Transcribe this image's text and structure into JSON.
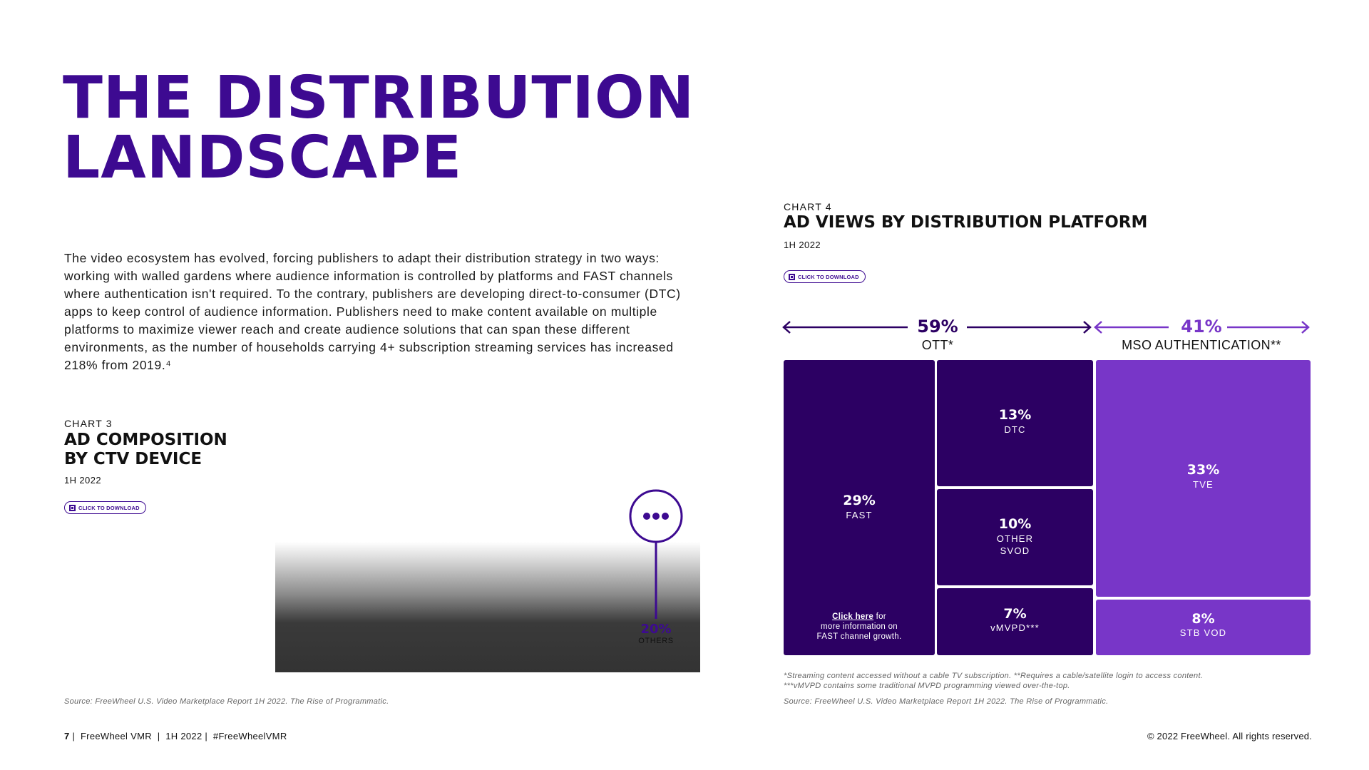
{
  "title_line1": "THE DISTRIBUTION",
  "title_line2": "LANDSCAPE",
  "intro": "The video ecosystem has evolved, forcing publishers to adapt their distribution strategy in two ways: working with walled gardens where audience information is controlled by platforms and FAST channels where authentication isn't required. To the contrary, publishers are developing direct-to-consumer (DTC) apps to keep control of audience information. Publishers need to make content available on multiple platforms to maximize viewer reach and create audience solutions that can span these different environments, as the number of households carrying 4+ subscription streaming services has increased 218% from 2019.⁴",
  "download_label": "CLICK TO DOWNLOAD",
  "chart3": {
    "label": "CHART 3",
    "title_line1": "AD COMPOSITION",
    "title_line2": "BY CTV DEVICE",
    "period": "1H 2022",
    "others_pct": "20%",
    "others_label": "OTHERS",
    "source": "Source: FreeWheel U.S. Video Marketplace Report 1H 2022. The Rise of Programmatic."
  },
  "chart4": {
    "label": "CHART 4",
    "title": "AD VIEWS BY DISTRIBUTION PLATFORM",
    "period": "1H 2022",
    "ott": {
      "pct": "59%",
      "label": "OTT*"
    },
    "mso": {
      "pct": "41%",
      "label": "MSO AUTHENTICATION**"
    },
    "tiles": {
      "fast": {
        "pct": "29%",
        "name": "FAST"
      },
      "dtc": {
        "pct": "13%",
        "name": "DTC"
      },
      "other_svod": {
        "pct": "10%",
        "name_line1": "OTHER",
        "name_line2": "SVOD"
      },
      "vmvpd": {
        "pct": "7%",
        "name": "vMVPD***"
      },
      "tve": {
        "pct": "33%",
        "name": "TVE"
      },
      "stb_vod": {
        "pct": "8%",
        "name": "STB VOD"
      }
    },
    "fast_note": {
      "link": "Click here",
      "text1": " for",
      "text2": "more information on",
      "text3": "FAST channel growth."
    },
    "footnote1": "*Streaming content accessed without a cable TV subscription. **Requires a cable/satellite login to access content.",
    "footnote2": "***vMVPD contains some traditional MVPD programming viewed over-the-top.",
    "source": "Source: FreeWheel U.S. Video Marketplace Report 1H 2022. The Rise of Programmatic."
  },
  "chart_data": {
    "type": "table",
    "title": "AD VIEWS BY DISTRIBUTION PLATFORM",
    "groups": [
      {
        "name": "OTT*",
        "value": 59,
        "items": [
          {
            "name": "FAST",
            "value": 29
          },
          {
            "name": "DTC",
            "value": 13
          },
          {
            "name": "OTHER SVOD",
            "value": 10
          },
          {
            "name": "vMVPD***",
            "value": 7
          }
        ]
      },
      {
        "name": "MSO AUTHENTICATION**",
        "value": 41,
        "items": [
          {
            "name": "TVE",
            "value": 33
          },
          {
            "name": "STB VOD",
            "value": 8
          }
        ]
      }
    ]
  },
  "footer": {
    "page_number": "7",
    "left_text": " |  FreeWheel VMR  |  1H 2022 |  #FreeWheelVMR",
    "copyright": "© 2022 FreeWheel. All rights reserved."
  },
  "colors": {
    "brand_purple": "#3d0a91",
    "ott_dark": "#2c0063",
    "mso_light": "#7836c8"
  }
}
